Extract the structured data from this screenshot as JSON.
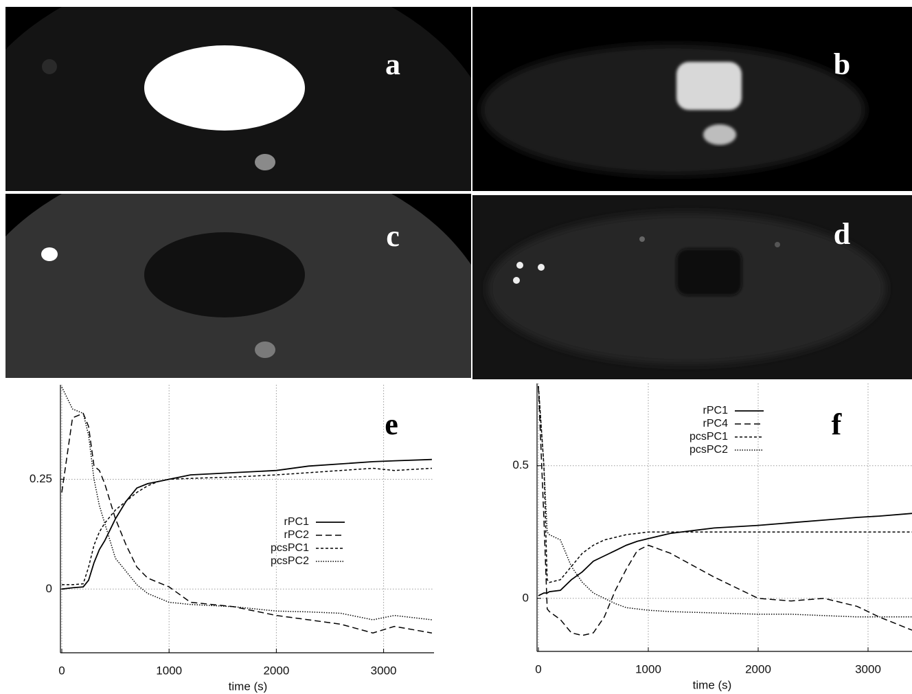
{
  "panels": [
    {
      "label": "a"
    },
    {
      "label": "b"
    },
    {
      "label": "c"
    },
    {
      "label": "d"
    }
  ],
  "chart_data": [
    {
      "type": "line",
      "panel_label": "e",
      "x_label": "time (s)",
      "x": [
        0,
        100,
        200,
        250,
        300,
        350,
        400,
        500,
        600,
        700,
        800,
        900,
        1000,
        1200,
        1600,
        2000,
        2300,
        2600,
        2900,
        3100,
        3450
      ],
      "xlim": [
        0,
        3470
      ],
      "xticks": [
        0,
        1000,
        2000,
        3000
      ],
      "ylim": [
        -0.145,
        0.465
      ],
      "yticks": [
        0,
        0.25
      ],
      "grid": true,
      "legend": "center-right",
      "series": [
        {
          "name": "rPC1",
          "color": "#000000",
          "style": "solid",
          "values": [
            0,
            0.003,
            0.005,
            0.02,
            0.06,
            0.09,
            0.11,
            0.16,
            0.2,
            0.23,
            0.24,
            0.245,
            0.25,
            0.26,
            0.265,
            0.27,
            0.28,
            0.285,
            0.29,
            0.292,
            0.295
          ]
        },
        {
          "name": "rPC2",
          "color": "#000000",
          "style": "dashed",
          "values": [
            0.22,
            0.39,
            0.4,
            0.37,
            0.28,
            0.27,
            0.24,
            0.16,
            0.1,
            0.05,
            0.025,
            0.015,
            0.005,
            -0.03,
            -0.04,
            -0.06,
            -0.07,
            -0.08,
            -0.1,
            -0.085,
            -0.1
          ]
        },
        {
          "name": "pcsPC1",
          "color": "#000000",
          "style": "short-dashed",
          "values": [
            0.01,
            0.01,
            0.012,
            0.05,
            0.1,
            0.13,
            0.15,
            0.18,
            0.2,
            0.22,
            0.235,
            0.245,
            0.25,
            0.252,
            0.255,
            0.26,
            0.265,
            0.27,
            0.275,
            0.27,
            0.275
          ]
        },
        {
          "name": "pcsPC2",
          "color": "#000000",
          "style": "dotted",
          "values": [
            0.46,
            0.41,
            0.4,
            0.35,
            0.25,
            0.19,
            0.15,
            0.07,
            0.04,
            0.01,
            -0.01,
            -0.02,
            -0.03,
            -0.035,
            -0.04,
            -0.05,
            -0.052,
            -0.055,
            -0.07,
            -0.06,
            -0.07
          ]
        }
      ]
    },
    {
      "type": "line",
      "panel_label": "f",
      "x_label": "time (s)",
      "x": [
        0,
        50,
        80,
        100,
        200,
        300,
        400,
        500,
        600,
        700,
        800,
        900,
        1000,
        1200,
        1600,
        2000,
        2300,
        2600,
        2900,
        3100,
        3400
      ],
      "xlim": [
        0,
        3400
      ],
      "xticks": [
        0,
        1000,
        2000,
        3000
      ],
      "ylim": [
        -0.2,
        0.81
      ],
      "yticks": [
        0,
        0.5
      ],
      "grid": true,
      "legend": "upper-left",
      "series": [
        {
          "name": "rPC1",
          "color": "#000000",
          "style": "solid",
          "values": [
            0.01,
            0.02,
            0.02,
            0.025,
            0.03,
            0.07,
            0.1,
            0.14,
            0.16,
            0.18,
            0.2,
            0.215,
            0.225,
            0.245,
            0.265,
            0.275,
            0.285,
            0.295,
            0.305,
            0.31,
            0.32
          ]
        },
        {
          "name": "rPC4",
          "color": "#000000",
          "style": "dashed",
          "values": [
            0.8,
            0.3,
            -0.04,
            -0.05,
            -0.08,
            -0.13,
            -0.14,
            -0.13,
            -0.07,
            0.03,
            0.11,
            0.18,
            0.2,
            0.17,
            0.08,
            0.0,
            -0.01,
            0.0,
            -0.03,
            -0.07,
            -0.12
          ]
        },
        {
          "name": "pcsPC1",
          "color": "#000000",
          "style": "short-dashed",
          "values": [
            0.8,
            0.5,
            0.07,
            0.06,
            0.07,
            0.12,
            0.17,
            0.2,
            0.22,
            0.23,
            0.24,
            0.245,
            0.25,
            0.25,
            0.25,
            0.25,
            0.25,
            0.25,
            0.25,
            0.25,
            0.25
          ]
        },
        {
          "name": "pcsPC2",
          "color": "#000000",
          "style": "dotted",
          "values": [
            0.8,
            0.5,
            0.25,
            0.24,
            0.22,
            0.12,
            0.06,
            0.02,
            0.0,
            -0.02,
            -0.035,
            -0.04,
            -0.045,
            -0.05,
            -0.055,
            -0.06,
            -0.06,
            -0.065,
            -0.07,
            -0.07,
            -0.07
          ]
        }
      ]
    }
  ]
}
